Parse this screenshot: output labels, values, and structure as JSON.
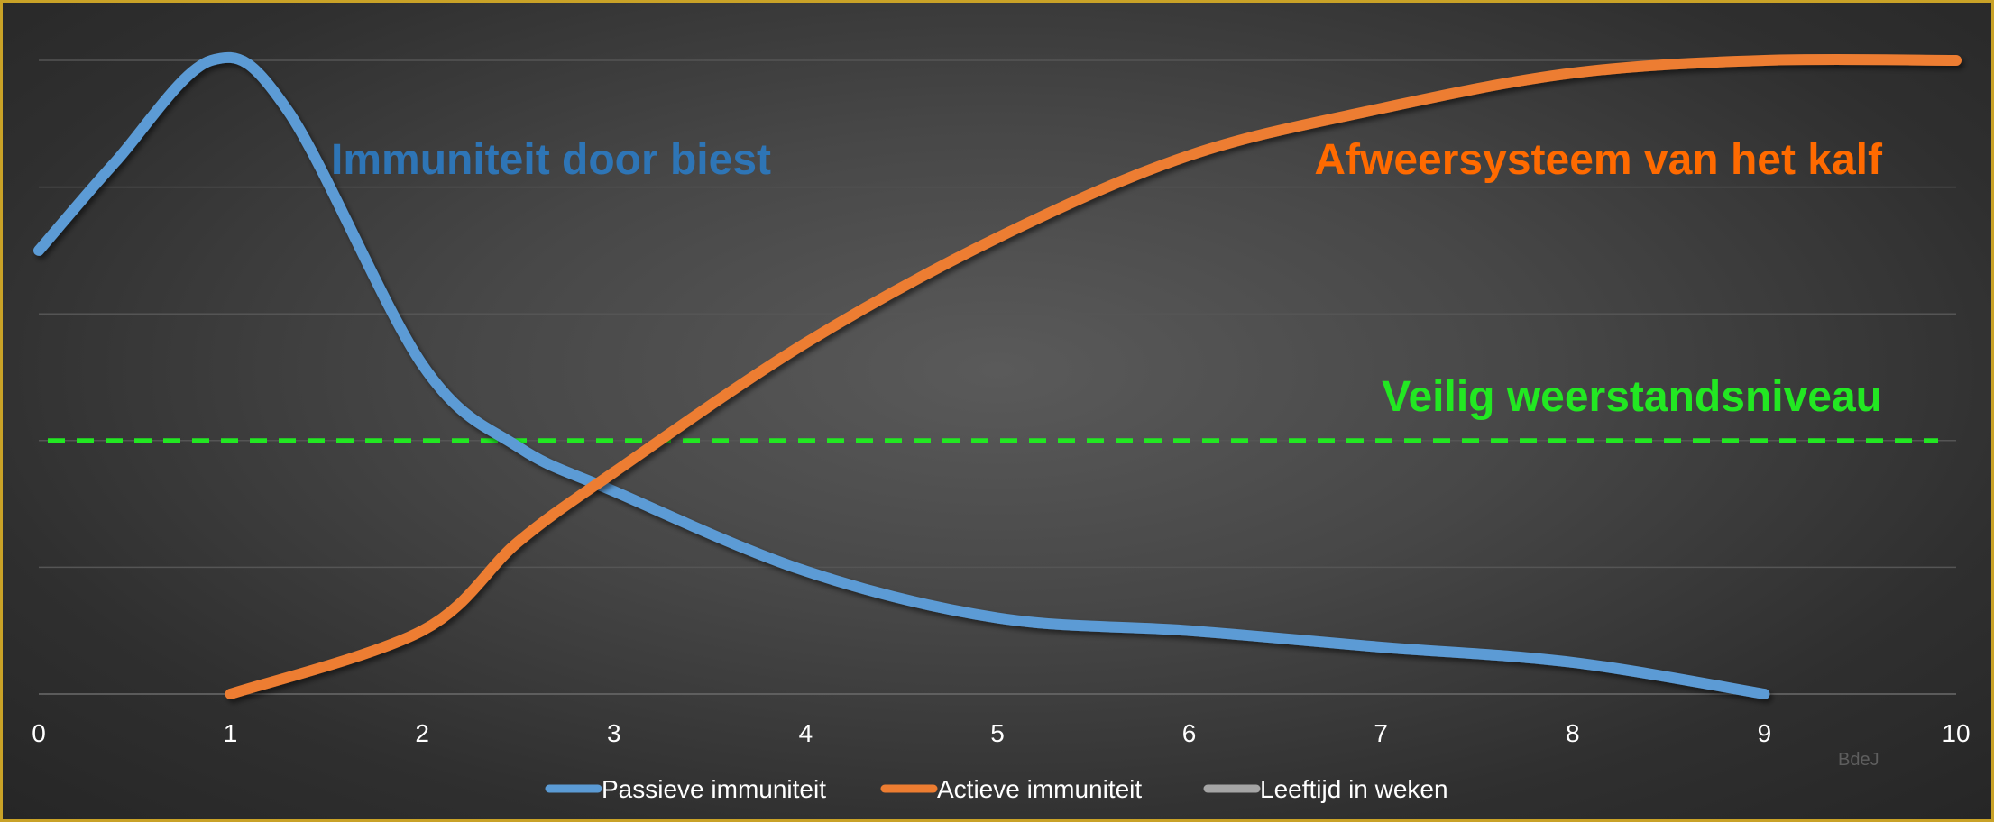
{
  "chart_data": {
    "type": "line",
    "title": "",
    "xlabel": "",
    "ylabel": "",
    "xlim": [
      0,
      10
    ],
    "ylim": [
      0,
      5
    ],
    "x_ticks": [
      "0",
      "1",
      "2",
      "3",
      "4",
      "5",
      "6",
      "7",
      "8",
      "9",
      "10"
    ],
    "grid": "horizontal",
    "legend_position": "bottom",
    "series": [
      {
        "name": "Passieve immuniteit",
        "color": "#5b9bd5",
        "points": [
          [
            0,
            3.5
          ],
          [
            0.4,
            4.2
          ],
          [
            0.9,
            5.0
          ],
          [
            1.3,
            4.6
          ],
          [
            2.0,
            2.6
          ],
          [
            2.5,
            1.95
          ],
          [
            3.0,
            1.6
          ],
          [
            4.0,
            0.97
          ],
          [
            5.0,
            0.6
          ],
          [
            6.0,
            0.5
          ],
          [
            7.0,
            0.37
          ],
          [
            8.0,
            0.25
          ],
          [
            9.0,
            0.0
          ]
        ]
      },
      {
        "name": "Actieve immuniteit",
        "color": "#ed7d31",
        "points": [
          [
            1.0,
            0.0
          ],
          [
            2.0,
            0.5
          ],
          [
            2.5,
            1.2
          ],
          [
            3.0,
            1.75
          ],
          [
            4.0,
            2.77
          ],
          [
            5.0,
            3.6
          ],
          [
            6.0,
            4.25
          ],
          [
            7.0,
            4.62
          ],
          [
            8.0,
            4.9
          ],
          [
            9.0,
            5.0
          ],
          [
            10.0,
            5.0
          ]
        ]
      },
      {
        "name": "Leeftijd in weken",
        "color": "#a5a5a5",
        "points": []
      }
    ],
    "reference_line": {
      "y": 2.0,
      "color": "#22e822",
      "style": "dashed"
    },
    "annotations": [
      {
        "text": "Immuniteit door biest",
        "color": "#2e75b6"
      },
      {
        "text": "Afweersysteem van het kalf",
        "color": "#ff6a00"
      },
      {
        "text": "Veilig weerstandsniveau",
        "color": "#22e822"
      }
    ],
    "watermark": "BdeJ"
  }
}
